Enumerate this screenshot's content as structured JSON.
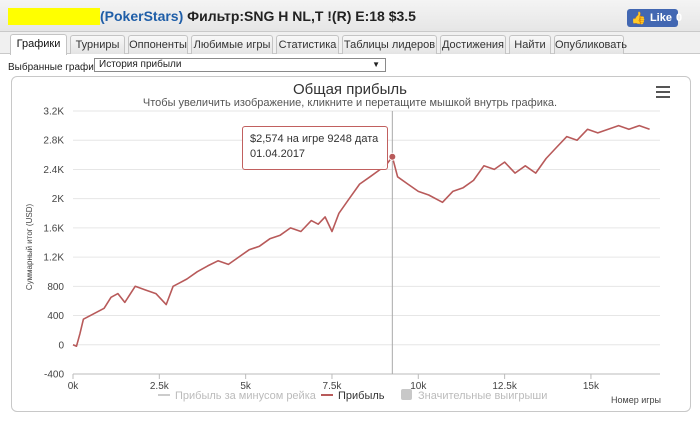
{
  "header": {
    "site": "(PokerStars)",
    "filter_text": " Фильтр:SNG H NL,T !(R) E:18 $3.5",
    "like_label": "Like",
    "like_count": "0"
  },
  "tabs": [
    {
      "label": "Графики"
    },
    {
      "label": "Турниры"
    },
    {
      "label": "Оппоненты"
    },
    {
      "label": "Любимые игры"
    },
    {
      "label": "Статистика"
    },
    {
      "label": "Таблицы лидеров"
    },
    {
      "label": "Достижения"
    },
    {
      "label": "Найти"
    },
    {
      "label": "Опубликовать"
    }
  ],
  "picker": {
    "label": "Выбранные графики:",
    "selected": "История прибыли"
  },
  "colors": {
    "profit_line": "#b85a5a",
    "rake_line": "#cccccc",
    "significant": "#c8c8c8",
    "facebook": "#4267b2",
    "highlight": "#ffff00"
  },
  "tooltip": {
    "line1": "$2,574 на игре 9248 дата",
    "line2": "01.04.2017"
  },
  "chart_data": {
    "type": "line",
    "title": "Общая прибыль",
    "subtitle": "Чтобы увеличить изображение, кликните и перетащите мышкой внутрь графика.",
    "xlabel": "Номер игры",
    "ylabel": "Суммарный итог (USD)",
    "xlim": [
      0,
      17000
    ],
    "ylim": [
      -400,
      3200
    ],
    "x_ticks": [
      0,
      2500,
      5000,
      7500,
      10000,
      12500,
      15000
    ],
    "x_tick_labels": [
      "0k",
      "2.5k",
      "5k",
      "7.5k",
      "10k",
      "12.5k",
      "15k"
    ],
    "y_ticks": [
      -400,
      0,
      400,
      800,
      1200,
      1600,
      2000,
      2400,
      2800,
      3200
    ],
    "y_tick_labels": [
      "-400",
      "0",
      "400",
      "800",
      "1.2K",
      "1.6K",
      "2K",
      "2.4K",
      "2.8K",
      "3.2K"
    ],
    "grid": true,
    "legend_position": "bottom",
    "legend": [
      {
        "name": "Прибыль за минусом рейка",
        "style": "line",
        "enabled": false
      },
      {
        "name": "Прибыль",
        "style": "line",
        "enabled": true
      },
      {
        "name": "Значительные выигрыши",
        "style": "box",
        "enabled": false
      }
    ],
    "series": [
      {
        "name": "Прибыль",
        "x": [
          0,
          100,
          200,
          300,
          500,
          700,
          900,
          1100,
          1300,
          1500,
          1800,
          2100,
          2400,
          2700,
          2900,
          3100,
          3300,
          3600,
          3900,
          4200,
          4500,
          4800,
          5100,
          5400,
          5700,
          6000,
          6300,
          6600,
          6900,
          7100,
          7300,
          7500,
          7700,
          8000,
          8300,
          8600,
          8900,
          9100,
          9248,
          9400,
          9700,
          10000,
          10300,
          10700,
          11000,
          11300,
          11600,
          11900,
          12200,
          12500,
          12800,
          13100,
          13400,
          13700,
          14000,
          14300,
          14600,
          14900,
          15200,
          15500,
          15800,
          16100,
          16400,
          16700
        ],
        "values": [
          0,
          -20,
          150,
          350,
          400,
          450,
          500,
          650,
          700,
          580,
          800,
          750,
          700,
          550,
          800,
          850,
          900,
          1000,
          1080,
          1150,
          1100,
          1200,
          1300,
          1350,
          1450,
          1500,
          1600,
          1550,
          1700,
          1650,
          1750,
          1550,
          1800,
          2000,
          2200,
          2300,
          2400,
          2480,
          2574,
          2300,
          2200,
          2100,
          2050,
          1950,
          2100,
          2150,
          2250,
          2450,
          2400,
          2500,
          2350,
          2450,
          2350,
          2550,
          2700,
          2850,
          2800,
          2950,
          2900,
          2950,
          3000,
          2950,
          3000,
          2950
        ]
      }
    ]
  }
}
